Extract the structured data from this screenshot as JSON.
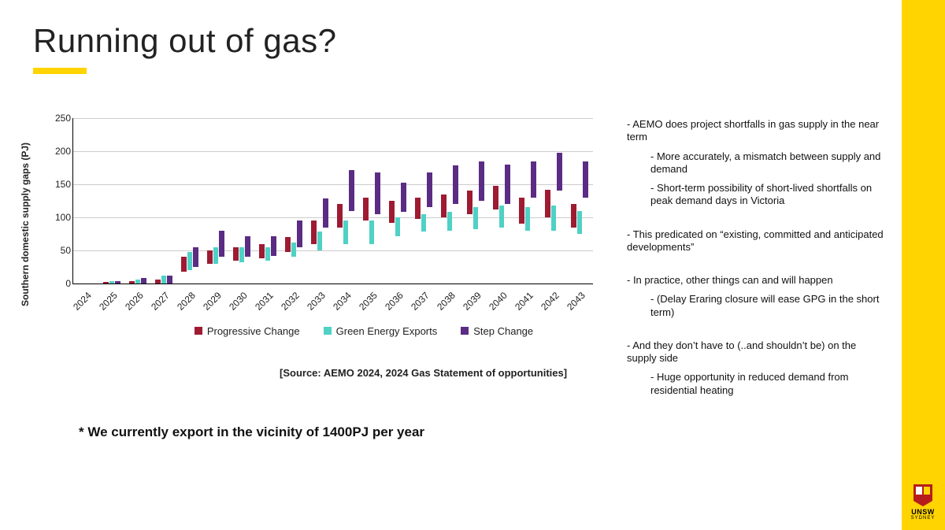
{
  "title": "Running out of gas?",
  "accent_color": "#ffd400",
  "gold_bar_color": "#ffd400",
  "background_color": "#ffffff",
  "chart": {
    "type": "floating-bar",
    "y_label": "Southern domestic supply gaps (PJ)",
    "ylim": [
      0,
      250
    ],
    "ytick_step": 50,
    "x_categories": [
      "2024",
      "2025",
      "2026",
      "2027",
      "2028",
      "2029",
      "2030",
      "2031",
      "2032",
      "2033",
      "2034",
      "2035",
      "2036",
      "2037",
      "2038",
      "2039",
      "2040",
      "2041",
      "2042",
      "2043"
    ],
    "grid_color": "#cccccc",
    "axis_color": "#000000",
    "tick_fontsize": 12,
    "label_fontsize": 12,
    "series": [
      {
        "name": "Progressive Change",
        "color": "#9e1b32",
        "ranges": [
          [
            0,
            0
          ],
          [
            0,
            2
          ],
          [
            0,
            4
          ],
          [
            0,
            6
          ],
          [
            18,
            40
          ],
          [
            30,
            50
          ],
          [
            35,
            55
          ],
          [
            38,
            60
          ],
          [
            48,
            70
          ],
          [
            60,
            95
          ],
          [
            85,
            120
          ],
          [
            95,
            130
          ],
          [
            92,
            125
          ],
          [
            98,
            130
          ],
          [
            100,
            135
          ],
          [
            105,
            140
          ],
          [
            112,
            148
          ],
          [
            90,
            130
          ],
          [
            100,
            142
          ],
          [
            85,
            120
          ]
        ]
      },
      {
        "name": "Green Energy Exports",
        "color": "#4fd1c5",
        "ranges": [
          [
            0,
            0
          ],
          [
            0,
            3
          ],
          [
            0,
            6
          ],
          [
            0,
            12
          ],
          [
            20,
            48
          ],
          [
            30,
            55
          ],
          [
            32,
            55
          ],
          [
            35,
            55
          ],
          [
            40,
            62
          ],
          [
            50,
            78
          ],
          [
            60,
            95
          ],
          [
            60,
            95
          ],
          [
            72,
            100
          ],
          [
            78,
            105
          ],
          [
            80,
            108
          ],
          [
            82,
            115
          ],
          [
            85,
            118
          ],
          [
            80,
            115
          ],
          [
            80,
            118
          ],
          [
            75,
            110
          ]
        ]
      },
      {
        "name": "Step Change",
        "color": "#5b2c83",
        "ranges": [
          [
            0,
            0
          ],
          [
            0,
            3
          ],
          [
            0,
            8
          ],
          [
            0,
            12
          ],
          [
            25,
            55
          ],
          [
            40,
            80
          ],
          [
            40,
            72
          ],
          [
            42,
            72
          ],
          [
            55,
            95
          ],
          [
            85,
            128
          ],
          [
            110,
            172
          ],
          [
            105,
            168
          ],
          [
            108,
            152
          ],
          [
            115,
            168
          ],
          [
            120,
            178
          ],
          [
            125,
            185
          ],
          [
            120,
            180
          ],
          [
            130,
            185
          ],
          [
            140,
            198
          ],
          [
            130,
            185
          ]
        ]
      }
    ],
    "legend_labels": [
      "Progressive Change",
      "Green Energy Exports",
      "Step Change"
    ]
  },
  "source_line": "[Source: AEMO 2024, 2024 Gas Statement of opportunities]",
  "footnote": "* We currently export in the vicinity of 1400PJ per year",
  "bullets": [
    {
      "level": 1,
      "text": "-  AEMO does project shortfalls in gas supply in the near term"
    },
    {
      "level": 2,
      "text": "- More accurately, a mismatch between supply and demand"
    },
    {
      "level": 2,
      "text": "- Short-term possibility of short-lived shortfalls on peak demand days in  Victoria"
    },
    {
      "level": 0,
      "gap": true
    },
    {
      "level": 1,
      "text": "- This predicated on “existing, committed and anticipated developments”"
    },
    {
      "level": 0,
      "gap": true
    },
    {
      "level": 1,
      "text": "- In practice, other things can and will happen"
    },
    {
      "level": 2,
      "text": "- (Delay Eraring closure will ease GPG in the short term)"
    },
    {
      "level": 0,
      "gap": true
    },
    {
      "level": 1,
      "text": "- And they don’t have to (..and shouldn’t be) on the supply side"
    },
    {
      "level": 2,
      "text": "- Huge opportunity in reduced demand from residential heating"
    }
  ],
  "logo": {
    "line1": "UNSW",
    "line2": "SYDNEY"
  }
}
